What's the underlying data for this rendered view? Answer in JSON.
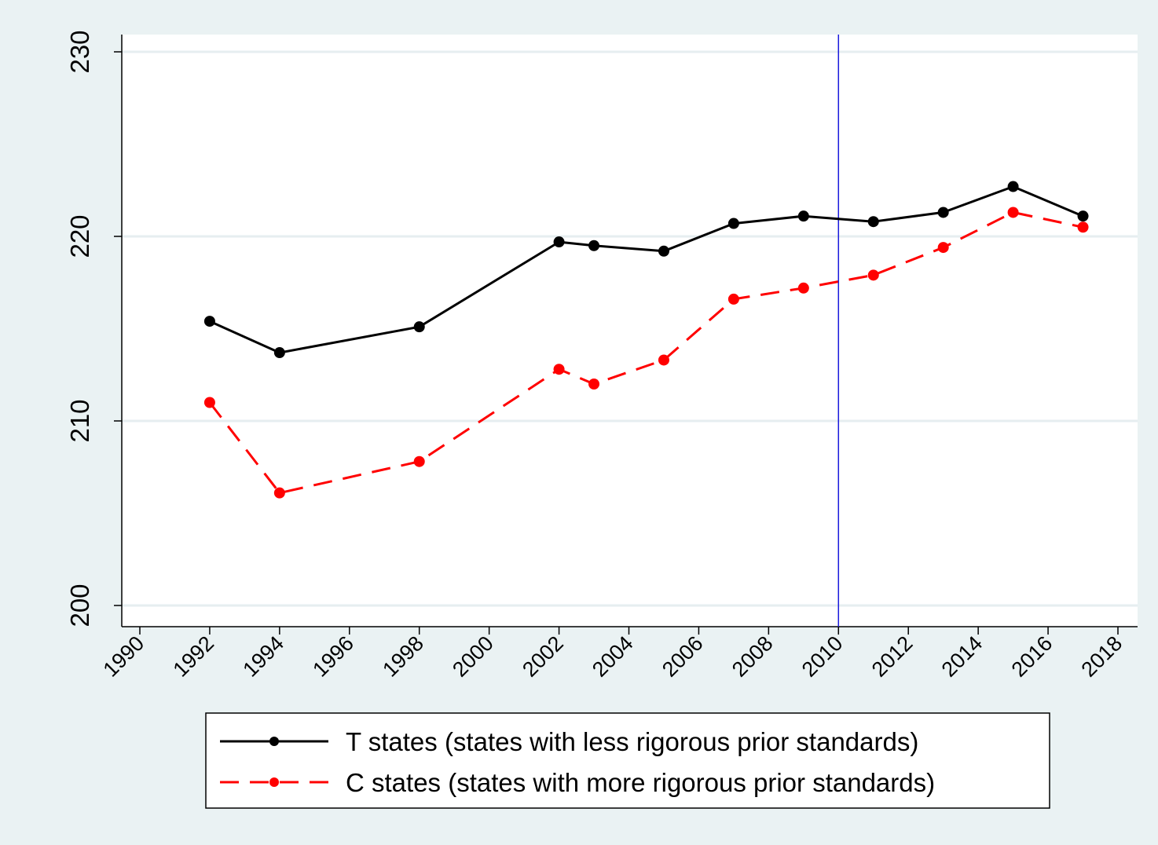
{
  "chart_data": {
    "type": "line",
    "title": "",
    "xlabel": "",
    "ylabel": "",
    "xlim": [
      1989,
      2018.5
    ],
    "ylim": [
      199.5,
      231
    ],
    "x_ticks": [
      "1990",
      "1992",
      "1994",
      "1996",
      "1998",
      "2000",
      "2002",
      "2004",
      "2006",
      "2008",
      "2010",
      "2012",
      "2014",
      "2016",
      "2018"
    ],
    "y_ticks": [
      "200",
      "210",
      "220",
      "230"
    ],
    "grid": true,
    "vline": 2010,
    "legend_position": "bottom",
    "series": [
      {
        "name": "T states (states with less rigorous prior standards)",
        "color": "#000000",
        "style": "solid",
        "x": [
          1992,
          1994,
          1998,
          2002,
          2003,
          2005,
          2007,
          2009,
          2011,
          2013,
          2015,
          2017
        ],
        "y": [
          215.4,
          213.7,
          215.1,
          219.7,
          219.5,
          219.2,
          220.7,
          221.1,
          220.8,
          221.3,
          222.7,
          221.1
        ]
      },
      {
        "name": "C states (states with more rigorous prior standards)",
        "color": "#ff0000",
        "style": "dashed",
        "x": [
          1992,
          1994,
          1998,
          2002,
          2003,
          2005,
          2007,
          2009,
          2011,
          2013,
          2015,
          2017
        ],
        "y": [
          211.0,
          206.1,
          207.8,
          212.8,
          212.0,
          213.3,
          216.6,
          217.2,
          217.9,
          219.4,
          221.3,
          220.5
        ]
      }
    ]
  },
  "colors": {
    "outer_background": "#eaf2f3",
    "plot_background": "#ffffff",
    "gridline": "#e6eef0",
    "vline": "#1a1adc"
  }
}
